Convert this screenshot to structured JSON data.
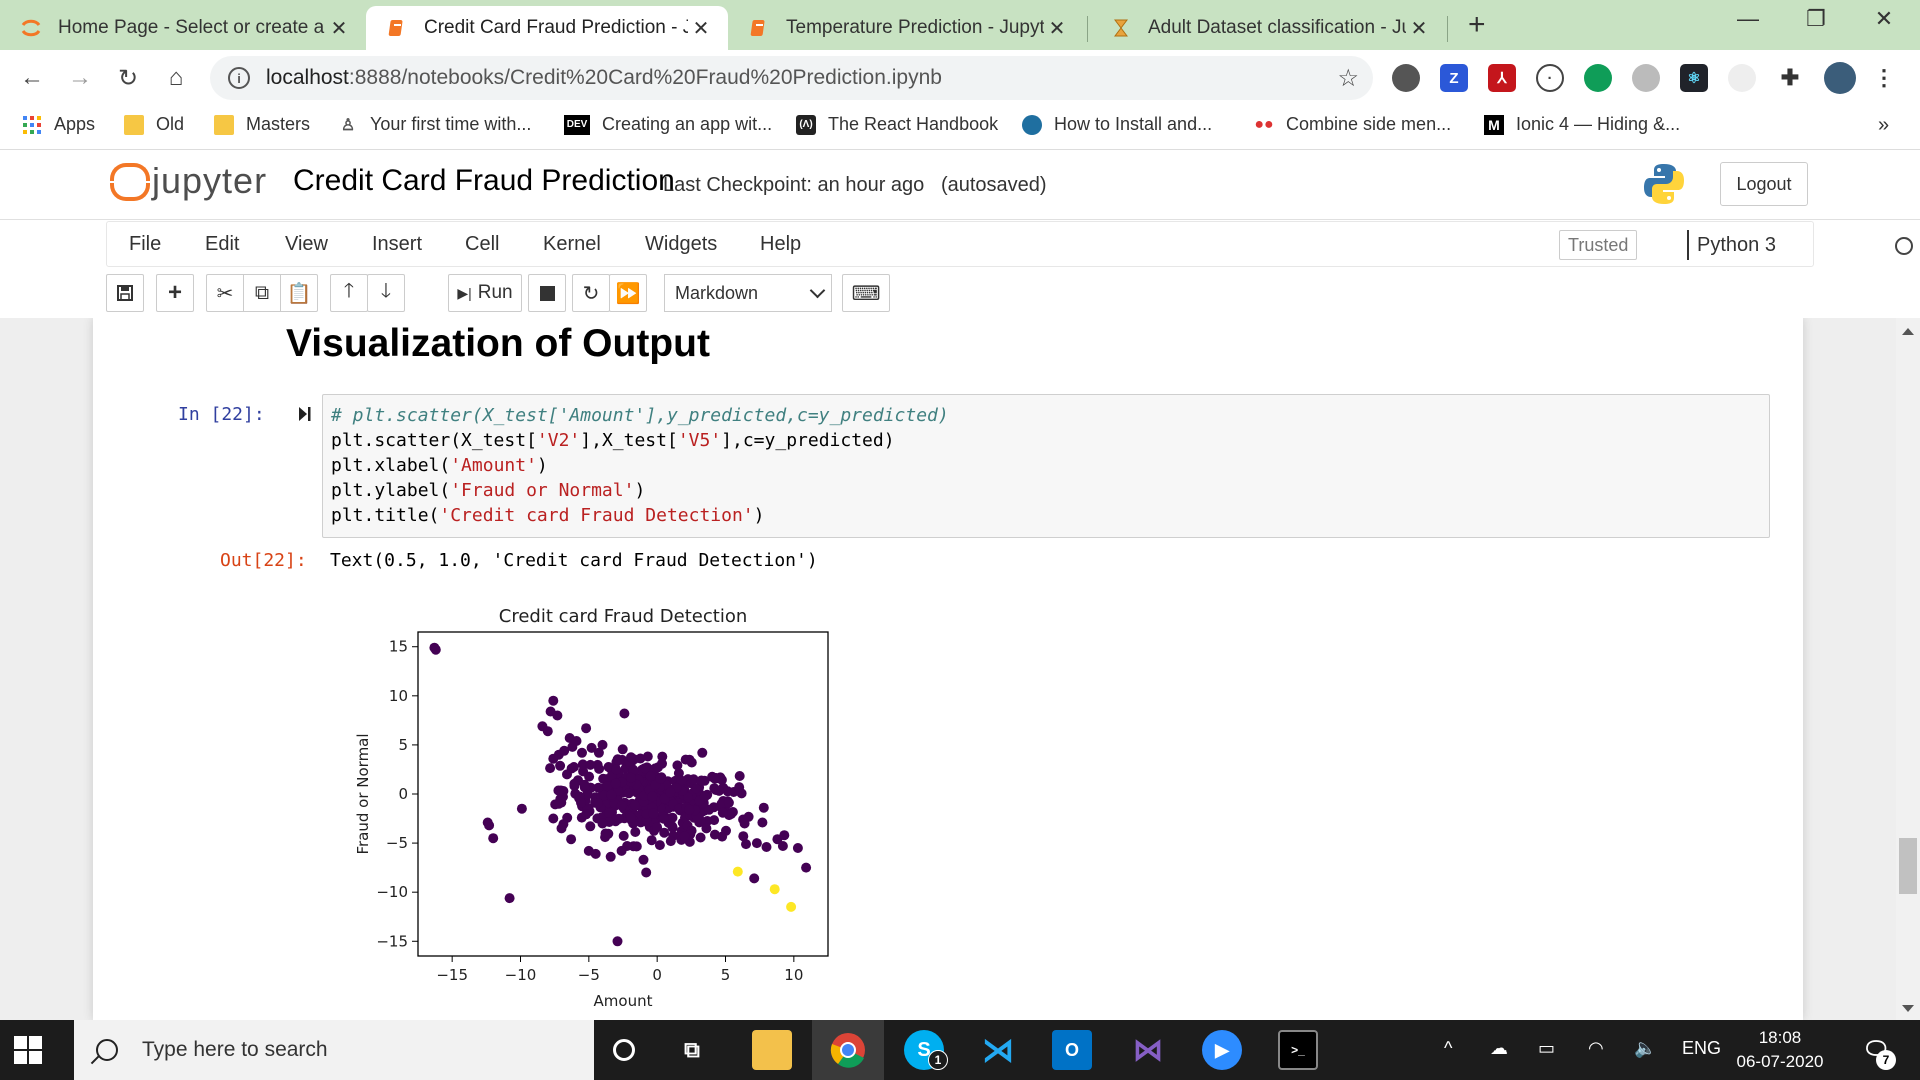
{
  "browser": {
    "tabs": [
      {
        "title": "Home Page - Select or create a n",
        "icon": "jupyter-icon"
      },
      {
        "title": "Credit Card Fraud Prediction - Ju",
        "icon": "notebook-icon"
      },
      {
        "title": "Temperature Prediction - Jupyter",
        "icon": "notebook-icon"
      },
      {
        "title": "Adult Dataset classification - Jupy",
        "icon": "hourglass-icon"
      }
    ],
    "close_glyph": "✕",
    "new_tab_glyph": "+",
    "url_host": "localhost",
    "url_rest": ":8888/notebooks/Credit%20Card%20Fraud%20Prediction.ipynb",
    "bookmarks": [
      {
        "label": "Apps",
        "icon": "apps-grid-icon"
      },
      {
        "label": "Old",
        "icon": "folder-icon"
      },
      {
        "label": "Masters",
        "icon": "folder-icon"
      },
      {
        "label": "Your first time with...",
        "icon": "person-icon"
      },
      {
        "label": "Creating an app wit...",
        "icon": "dev-icon"
      },
      {
        "label": "The React Handbook",
        "icon": "react-handbook-icon"
      },
      {
        "label": "How to Install and...",
        "icon": "globe-icon"
      },
      {
        "label": "Combine side men...",
        "icon": "dots-icon"
      },
      {
        "label": "Ionic 4 — Hiding &...",
        "icon": "medium-icon"
      }
    ],
    "bookmark_overflow": "»"
  },
  "jupyter": {
    "logo_text": "jupyter",
    "notebook_title": "Credit Card Fraud Prediction",
    "checkpoint": "Last Checkpoint: an hour ago",
    "autosave": "(autosaved)",
    "logout_label": "Logout",
    "menu": [
      "File",
      "Edit",
      "View",
      "Insert",
      "Cell",
      "Kernel",
      "Widgets",
      "Help"
    ],
    "trusted_label": "Trusted",
    "kernel_name": "Python 3",
    "toolbar": {
      "run_label": "Run",
      "cell_type": "Markdown"
    }
  },
  "notebook": {
    "heading": "Visualization of Output",
    "in_prompt": "In [22]:",
    "code_lines": [
      {
        "segments": [
          {
            "t": "# plt.scatter(X_test['Amount'],y_predicted,c=y_predicted)",
            "c": "comment"
          }
        ]
      },
      {
        "segments": [
          {
            "t": "plt.scatter(X_test[",
            "c": ""
          },
          {
            "t": "'V2'",
            "c": "str"
          },
          {
            "t": "],X_test[",
            "c": ""
          },
          {
            "t": "'V5'",
            "c": "str"
          },
          {
            "t": "],c=y_predicted)",
            "c": ""
          }
        ]
      },
      {
        "segments": [
          {
            "t": "plt.xlabel(",
            "c": ""
          },
          {
            "t": "'Amount'",
            "c": "str"
          },
          {
            "t": ")",
            "c": ""
          }
        ]
      },
      {
        "segments": [
          {
            "t": "plt.ylabel(",
            "c": ""
          },
          {
            "t": "'Fraud or Normal'",
            "c": "str"
          },
          {
            "t": ")",
            "c": ""
          }
        ]
      },
      {
        "segments": [
          {
            "t": "plt.title(",
            "c": ""
          },
          {
            "t": "'Credit card Fraud Detection'",
            "c": "str"
          },
          {
            "t": ")",
            "c": ""
          }
        ]
      }
    ],
    "out_prompt": "Out[22]:",
    "out_text": "Text(0.5, 1.0, 'Credit card Fraud Detection')"
  },
  "chart_data": {
    "type": "scatter",
    "title": "Credit card Fraud Detection",
    "xlabel": "Amount",
    "ylabel": "Fraud or Normal",
    "xlim": [
      -17.5,
      12.5
    ],
    "ylim": [
      -16.5,
      16.5
    ],
    "xticks": [
      -15,
      -10,
      -5,
      0,
      5,
      10
    ],
    "yticks": [
      15,
      10,
      5,
      0,
      -5,
      -10,
      -15
    ],
    "grid": false,
    "colors": {
      "normal": "#440154",
      "fraud": "#fde725"
    },
    "cluster": {
      "center": [
        -0.5,
        -0.5
      ],
      "spread": [
        3.2,
        1.9
      ],
      "count": 420,
      "series": "normal"
    },
    "series": [
      {
        "label": "normal",
        "color": "#440154",
        "points": [
          [
            -16.3,
            14.9
          ],
          [
            -16.2,
            14.7
          ],
          [
            -12.4,
            -2.9
          ],
          [
            -12.0,
            -4.5
          ],
          [
            -12.3,
            -3.2
          ],
          [
            -10.8,
            -10.6
          ],
          [
            -9.9,
            -1.5
          ],
          [
            -8.4,
            6.9
          ],
          [
            -8.0,
            6.4
          ],
          [
            -7.8,
            8.4
          ],
          [
            -7.3,
            8.0
          ],
          [
            -7.6,
            9.5
          ],
          [
            -7.2,
            4.0
          ],
          [
            -7.6,
            3.6
          ],
          [
            -6.8,
            4.4
          ],
          [
            -6.4,
            5.7
          ],
          [
            -6.2,
            4.8
          ],
          [
            -5.9,
            5.4
          ],
          [
            -5.5,
            4.2
          ],
          [
            -6.6,
            2.0
          ],
          [
            -7.2,
            -1.0
          ],
          [
            -7.6,
            -2.5
          ],
          [
            -7.0,
            -3.5
          ],
          [
            -6.3,
            -4.6
          ],
          [
            -5.2,
            6.7
          ],
          [
            -4.8,
            4.7
          ],
          [
            -4.0,
            5.0
          ],
          [
            -2.4,
            8.2
          ],
          [
            -5.0,
            -5.8
          ],
          [
            -4.5,
            -6.1
          ],
          [
            -3.4,
            -6.4
          ],
          [
            -2.2,
            -5.3
          ],
          [
            -2.6,
            -5.8
          ],
          [
            -1.0,
            -6.7
          ],
          [
            -0.8,
            -8.0
          ],
          [
            -2.9,
            -15.0
          ],
          [
            3.3,
            4.2
          ],
          [
            4.2,
            1.6
          ],
          [
            4.8,
            -1.9
          ],
          [
            5.6,
            0.2
          ],
          [
            6.0,
            0.7
          ],
          [
            6.4,
            -3.0
          ],
          [
            6.3,
            -4.3
          ],
          [
            6.5,
            -5.1
          ],
          [
            7.3,
            -5.0
          ],
          [
            7.8,
            -1.4
          ],
          [
            7.7,
            -2.9
          ],
          [
            8.0,
            -5.4
          ],
          [
            8.8,
            -4.6
          ],
          [
            9.3,
            -4.2
          ],
          [
            9.2,
            -5.3
          ],
          [
            10.3,
            -5.5
          ],
          [
            10.9,
            -7.5
          ],
          [
            7.1,
            -8.6
          ],
          [
            2.0,
            -4.3
          ],
          [
            1.0,
            -4.8
          ],
          [
            0.2,
            -5.2
          ],
          [
            -4.0,
            -3.0
          ],
          [
            3.6,
            -3.5
          ],
          [
            -3.0,
            2.5
          ]
        ]
      },
      {
        "label": "fraud",
        "color": "#fde725",
        "points": [
          [
            5.9,
            -7.9
          ],
          [
            8.6,
            -9.7
          ],
          [
            9.8,
            -11.5
          ]
        ]
      }
    ]
  },
  "taskbar": {
    "search_placeholder": "Type here to search",
    "language": "ENG",
    "time": "18:08",
    "date": "06-07-2020",
    "notification_count": "7",
    "skype_badge": "1"
  }
}
